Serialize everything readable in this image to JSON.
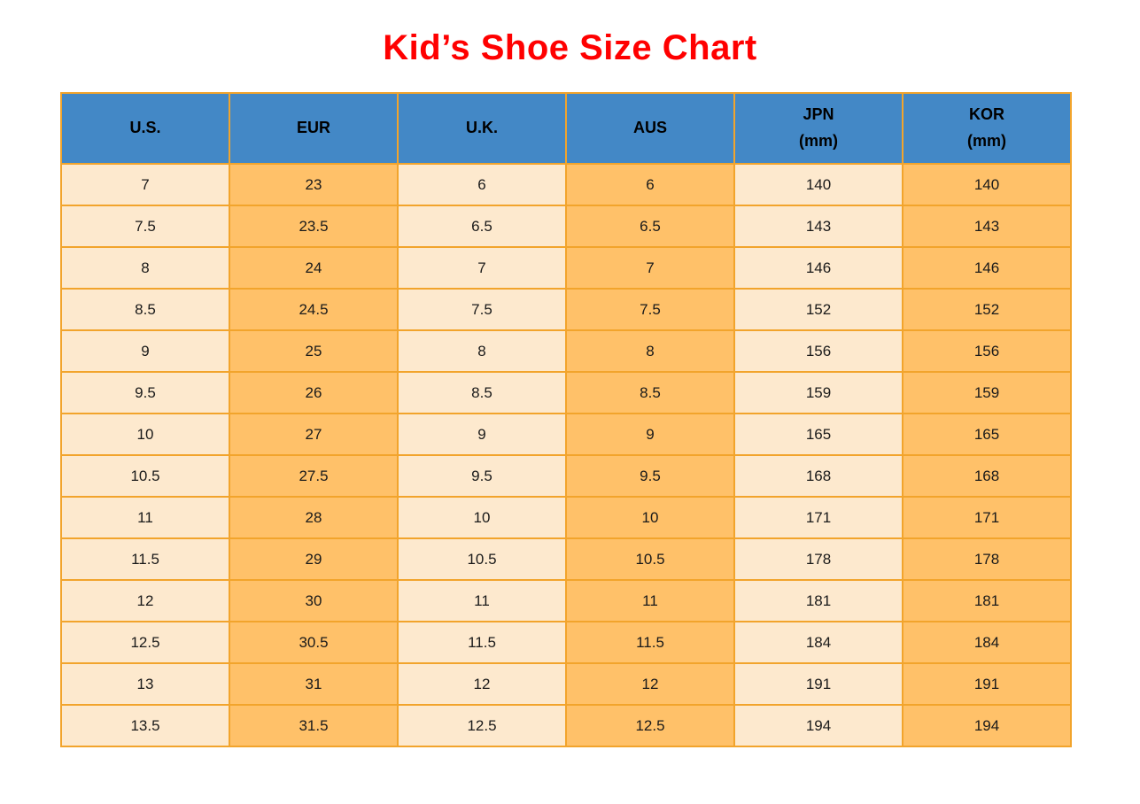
{
  "page": {
    "background": "#FFFFFF"
  },
  "title": "Kid’s Shoe Size Chart",
  "colors": {
    "title": "#FF0000",
    "header_bg": "#4388C6",
    "header_text": "#000000",
    "cell_text": "#1A1A1A",
    "cell_light": "#FDE9CE",
    "cell_orange": "#FFC169",
    "border": "#F2A42C"
  },
  "chart_data": {
    "type": "table",
    "title": "Kid’s Shoe Size Chart",
    "columns": [
      {
        "label": "U.S.",
        "fill": "light"
      },
      {
        "label": "EUR",
        "fill": "orange"
      },
      {
        "label": "U.K.",
        "fill": "light"
      },
      {
        "label": "AUS",
        "fill": "orange"
      },
      {
        "label": "JPN",
        "sub": "(mm)",
        "fill": "light"
      },
      {
        "label": "KOR",
        "sub": "(mm)",
        "fill": "orange"
      }
    ],
    "rows": [
      [
        "7",
        "23",
        "6",
        "6",
        "140",
        "140"
      ],
      [
        "7.5",
        "23.5",
        "6.5",
        "6.5",
        "143",
        "143"
      ],
      [
        "8",
        "24",
        "7",
        "7",
        "146",
        "146"
      ],
      [
        "8.5",
        "24.5",
        "7.5",
        "7.5",
        "152",
        "152"
      ],
      [
        "9",
        "25",
        "8",
        "8",
        "156",
        "156"
      ],
      [
        "9.5",
        "26",
        "8.5",
        "8.5",
        "159",
        "159"
      ],
      [
        "10",
        "27",
        "9",
        "9",
        "165",
        "165"
      ],
      [
        "10.5",
        "27.5",
        "9.5",
        "9.5",
        "168",
        "168"
      ],
      [
        "11",
        "28",
        "10",
        "10",
        "171",
        "171"
      ],
      [
        "11.5",
        "29",
        "10.5",
        "10.5",
        "178",
        "178"
      ],
      [
        "12",
        "30",
        "11",
        "11",
        "181",
        "181"
      ],
      [
        "12.5",
        "30.5",
        "11.5",
        "11.5",
        "184",
        "184"
      ],
      [
        "13",
        "31",
        "12",
        "12",
        "191",
        "191"
      ],
      [
        "13.5",
        "31.5",
        "12.5",
        "12.5",
        "194",
        "194"
      ]
    ]
  }
}
